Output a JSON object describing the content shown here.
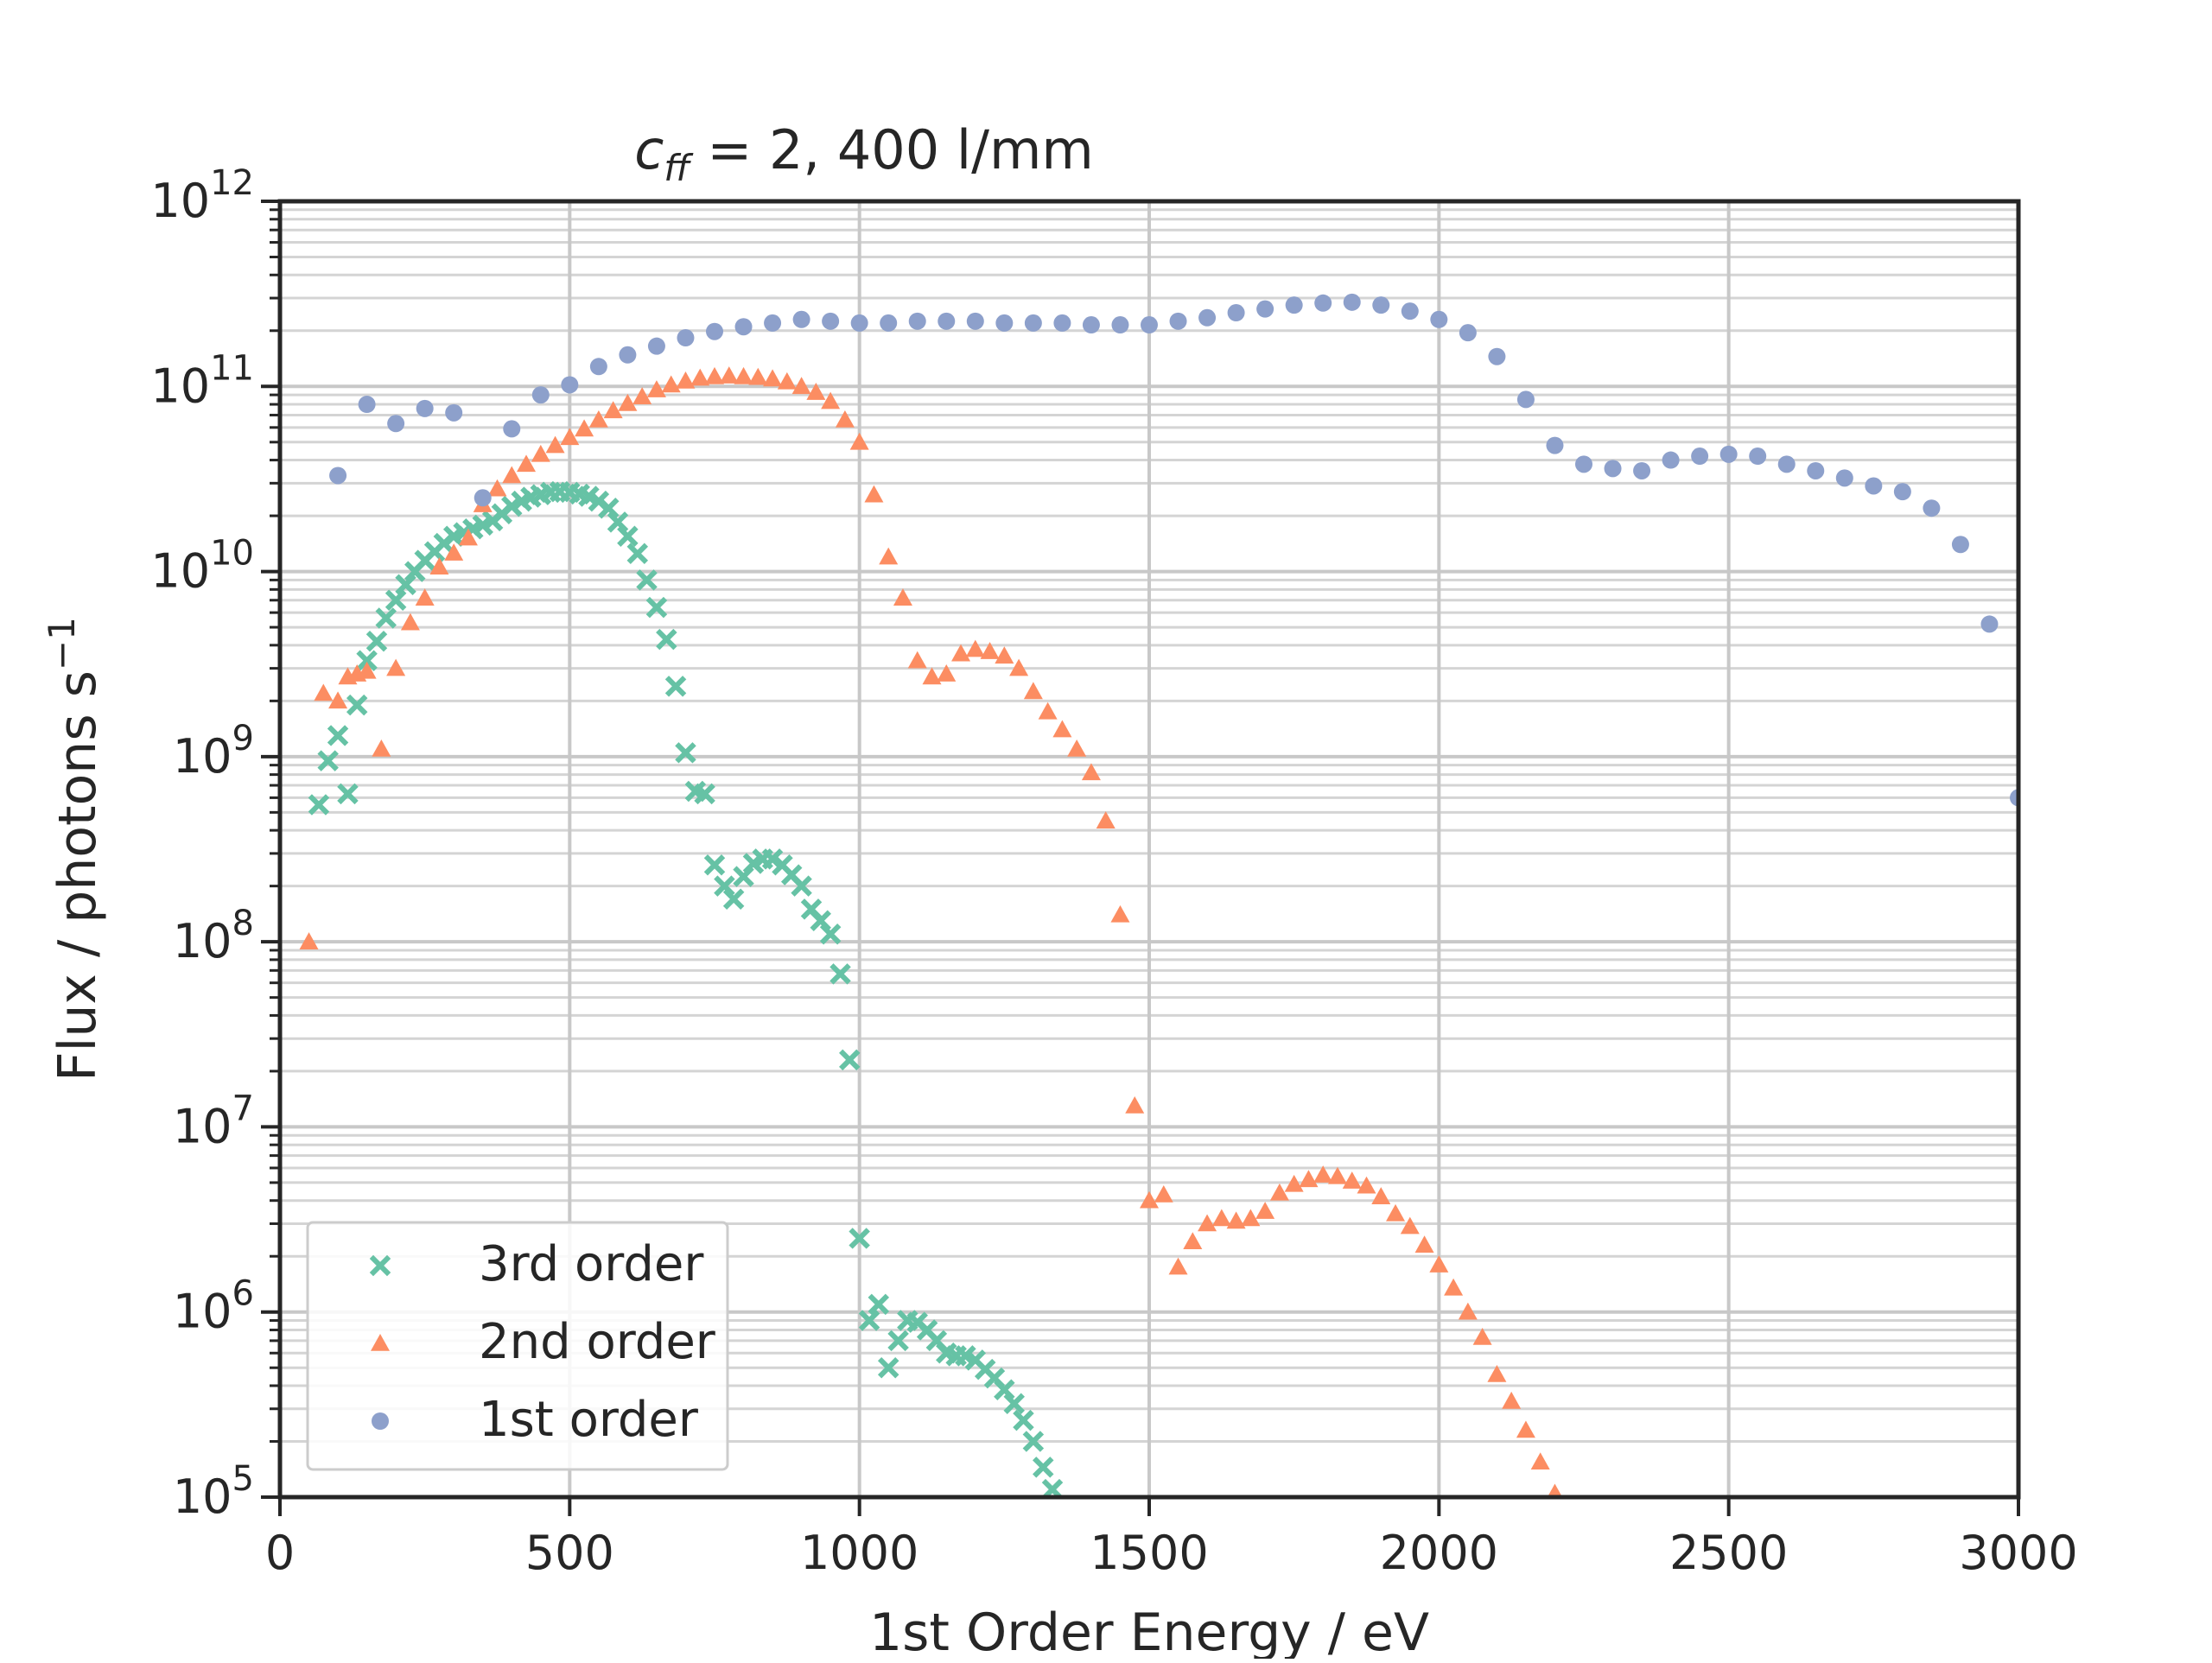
{
  "chart_data": {
    "type": "scatter",
    "title": {
      "prefix": "c",
      "subscript": "ff",
      "suffix": " = 2, 400 l/mm"
    },
    "xlabel": "1st Order Energy / eV",
    "ylabel": {
      "main": "Flux / photons s",
      "superscript": "−1"
    },
    "xlim": [
      0,
      3000
    ],
    "ylim": [
      100000,
      1000000000000
    ],
    "yscale": "log",
    "xticks": [
      0,
      500,
      1000,
      1500,
      2000,
      2500,
      3000
    ],
    "xtick_labels": [
      "0",
      "500",
      "1000",
      "1500",
      "2000",
      "2500",
      "3000"
    ],
    "yticks": [
      {
        "base": "10",
        "exp": "5"
      },
      {
        "base": "10",
        "exp": "6"
      },
      {
        "base": "10",
        "exp": "7"
      },
      {
        "base": "10",
        "exp": "8"
      },
      {
        "base": "10",
        "exp": "9"
      },
      {
        "base": "10",
        "exp": "10"
      },
      {
        "base": "10",
        "exp": "11"
      },
      {
        "base": "10",
        "exp": "12"
      }
    ],
    "grid": true,
    "legend_position": "lower-left",
    "series": [
      {
        "name": "3rd order",
        "marker": "x",
        "color": "#66c2a5",
        "points": [
          [
            67,
            550000000.0
          ],
          [
            83,
            950000000.0
          ],
          [
            100,
            1300000000.0
          ],
          [
            117,
            630000000.0
          ],
          [
            133,
            1900000000.0
          ],
          [
            150,
            3300000000.0
          ],
          [
            167,
            4200000000.0
          ],
          [
            183,
            5600000000.0
          ],
          [
            200,
            7000000000.0
          ],
          [
            217,
            8500000000.0
          ],
          [
            233,
            10000000000.0
          ],
          [
            250,
            11500000000.0
          ],
          [
            267,
            12800000000.0
          ],
          [
            283,
            14200000000.0
          ],
          [
            300,
            15500000000.0
          ],
          [
            317,
            16200000000.0
          ],
          [
            333,
            17000000000.0
          ],
          [
            350,
            17800000000.0
          ],
          [
            367,
            18800000000.0
          ],
          [
            383,
            20500000000.0
          ],
          [
            400,
            22500000000.0
          ],
          [
            417,
            24000000000.0
          ],
          [
            433,
            25200000000.0
          ],
          [
            450,
            26000000000.0
          ],
          [
            467,
            26800000000.0
          ],
          [
            483,
            27000000000.0
          ],
          [
            500,
            26800000000.0
          ],
          [
            517,
            26200000000.0
          ],
          [
            533,
            25500000000.0
          ],
          [
            550,
            24000000000.0
          ],
          [
            567,
            22000000000.0
          ],
          [
            583,
            18500000000.0
          ],
          [
            600,
            15500000000.0
          ],
          [
            617,
            12500000000.0
          ],
          [
            633,
            9000000000.0
          ],
          [
            650,
            6400000000.0
          ],
          [
            667,
            4300000000.0
          ],
          [
            683,
            2400000000.0
          ],
          [
            700,
            1050000000.0
          ],
          [
            717,
            650000000.0
          ],
          [
            733,
            630000000.0
          ],
          [
            750,
            260000000.0
          ],
          [
            767,
            200000000.0
          ],
          [
            783,
            170000000.0
          ],
          [
            800,
            225000000.0
          ],
          [
            817,
            265000000.0
          ],
          [
            833,
            280000000.0
          ],
          [
            850,
            280000000.0
          ],
          [
            867,
            260000000.0
          ],
          [
            883,
            230000000.0
          ],
          [
            900,
            200000000.0
          ],
          [
            917,
            150000000.0
          ],
          [
            933,
            130000000.0
          ],
          [
            950,
            110000000.0
          ],
          [
            967,
            67000000.0
          ],
          [
            983,
            23000000.0
          ],
          [
            1000,
            2500000.0
          ],
          [
            1017,
            900000.0
          ],
          [
            1033,
            1100000.0
          ],
          [
            1050,
            500000.0
          ],
          [
            1067,
            700000.0
          ],
          [
            1083,
            900000.0
          ],
          [
            1100,
            880000.0
          ],
          [
            1117,
            800000.0
          ],
          [
            1133,
            700000.0
          ],
          [
            1150,
            600000.0
          ],
          [
            1167,
            580000.0
          ],
          [
            1183,
            580000.0
          ],
          [
            1200,
            550000.0
          ],
          [
            1217,
            490000.0
          ],
          [
            1233,
            440000.0
          ],
          [
            1250,
            380000.0
          ],
          [
            1267,
            320000.0
          ],
          [
            1283,
            260000.0
          ],
          [
            1300,
            200000.0
          ],
          [
            1317,
            145000.0
          ],
          [
            1333,
            110000.0
          ]
        ]
      },
      {
        "name": "2nd order",
        "marker": "triangle",
        "color": "#fc8d62",
        "points": [
          [
            50,
            100000000.0
          ],
          [
            75,
            2200000000.0
          ],
          [
            100,
            2000000000.0
          ],
          [
            117,
            2700000000.0
          ],
          [
            133,
            2800000000.0
          ],
          [
            150,
            2900000000.0
          ],
          [
            175,
            1100000000.0
          ],
          [
            200,
            3000000000.0
          ],
          [
            225,
            5300000000.0
          ],
          [
            250,
            7200000000.0
          ],
          [
            275,
            10600000000.0
          ],
          [
            300,
            12600000000.0
          ],
          [
            325,
            15200000000.0
          ],
          [
            350,
            23000000000.0
          ],
          [
            375,
            28000000000.0
          ],
          [
            400,
            33000000000.0
          ],
          [
            425,
            38000000000.0
          ],
          [
            450,
            43000000000.0
          ],
          [
            475,
            48000000000.0
          ],
          [
            500,
            53000000000.0
          ],
          [
            525,
            59000000000.0
          ],
          [
            550,
            66000000000.0
          ],
          [
            575,
            74000000000.0
          ],
          [
            600,
            81000000000.0
          ],
          [
            625,
            88000000000.0
          ],
          [
            650,
            96000000000.0
          ],
          [
            675,
            102000000000.0
          ],
          [
            700,
            107000000000.0
          ],
          [
            725,
            111000000000.0
          ],
          [
            750,
            113000000000.0
          ],
          [
            775,
            114000000000.0
          ],
          [
            800,
            113000000000.0
          ],
          [
            825,
            112000000000.0
          ],
          [
            850,
            110000000000.0
          ],
          [
            875,
            106000000000.0
          ],
          [
            900,
            100000000000.0
          ],
          [
            925,
            93000000000.0
          ],
          [
            950,
            83000000000.0
          ],
          [
            975,
            66000000000.0
          ],
          [
            1000,
            50000000000.0
          ],
          [
            1025,
            26000000000.0
          ],
          [
            1050,
            12000000000.0
          ],
          [
            1075,
            7200000000.0
          ],
          [
            1100,
            3300000000.0
          ],
          [
            1125,
            2700000000.0
          ],
          [
            1150,
            2800000000.0
          ],
          [
            1175,
            3600000000.0
          ],
          [
            1200,
            3800000000.0
          ],
          [
            1225,
            3700000000.0
          ],
          [
            1250,
            3500000000.0
          ],
          [
            1275,
            3000000000.0
          ],
          [
            1300,
            2250000000.0
          ],
          [
            1325,
            1750000000.0
          ],
          [
            1350,
            1400000000.0
          ],
          [
            1375,
            1100000000.0
          ],
          [
            1400,
            820000000.0
          ],
          [
            1425,
            450000000.0
          ],
          [
            1450,
            140000000.0
          ],
          [
            1475,
            13000000.0
          ],
          [
            1500,
            4000000.0
          ],
          [
            1525,
            4300000.0
          ],
          [
            1550,
            1750000.0
          ],
          [
            1575,
            2400000.0
          ],
          [
            1600,
            3000000.0
          ],
          [
            1625,
            3200000.0
          ],
          [
            1650,
            3100000.0
          ],
          [
            1675,
            3200000.0
          ],
          [
            1700,
            3500000.0
          ],
          [
            1725,
            4400000.0
          ],
          [
            1750,
            4900000.0
          ],
          [
            1775,
            5200000.0
          ],
          [
            1800,
            5500000.0
          ],
          [
            1825,
            5400000.0
          ],
          [
            1850,
            5100000.0
          ],
          [
            1875,
            4800000.0
          ],
          [
            1900,
            4200000.0
          ],
          [
            1925,
            3400000.0
          ],
          [
            1950,
            2900000.0
          ],
          [
            1975,
            2300000.0
          ],
          [
            2000,
            1800000.0
          ],
          [
            2025,
            1350000.0
          ],
          [
            2050,
            1000000.0
          ],
          [
            2075,
            730000.0
          ],
          [
            2100,
            460000.0
          ],
          [
            2125,
            330000.0
          ],
          [
            2150,
            230000.0
          ],
          [
            2175,
            155000.0
          ],
          [
            2200,
            105000.0
          ]
        ]
      },
      {
        "name": "1st order",
        "marker": "circle",
        "color": "#8da0cb",
        "points": [
          [
            100,
            33000000000.0
          ],
          [
            150,
            80000000000.0
          ],
          [
            200,
            63000000000.0
          ],
          [
            250,
            76000000000.0
          ],
          [
            300,
            72000000000.0
          ],
          [
            350,
            25000000000.0
          ],
          [
            400,
            59000000000.0
          ],
          [
            450,
            90000000000.0
          ],
          [
            500,
            102000000000.0
          ],
          [
            550,
            128000000000.0
          ],
          [
            600,
            148000000000.0
          ],
          [
            650,
            165000000000.0
          ],
          [
            700,
            183000000000.0
          ],
          [
            750,
            198000000000.0
          ],
          [
            800,
            210000000000.0
          ],
          [
            850,
            220000000000.0
          ],
          [
            900,
            230000000000.0
          ],
          [
            950,
            225000000000.0
          ],
          [
            1000,
            220000000000.0
          ],
          [
            1050,
            220000000000.0
          ],
          [
            1100,
            225000000000.0
          ],
          [
            1150,
            225000000000.0
          ],
          [
            1200,
            225000000000.0
          ],
          [
            1250,
            220000000000.0
          ],
          [
            1300,
            220000000000.0
          ],
          [
            1350,
            220000000000.0
          ],
          [
            1400,
            215000000000.0
          ],
          [
            1450,
            215000000000.0
          ],
          [
            1500,
            215000000000.0
          ],
          [
            1550,
            225000000000.0
          ],
          [
            1600,
            235000000000.0
          ],
          [
            1650,
            250000000000.0
          ],
          [
            1700,
            262000000000.0
          ],
          [
            1750,
            275000000000.0
          ],
          [
            1800,
            282000000000.0
          ],
          [
            1850,
            285000000000.0
          ],
          [
            1900,
            275000000000.0
          ],
          [
            1950,
            255000000000.0
          ],
          [
            2000,
            230000000000.0
          ],
          [
            2050,
            195000000000.0
          ],
          [
            2100,
            145000000000.0
          ],
          [
            2150,
            85000000000.0
          ],
          [
            2200,
            48000000000.0
          ],
          [
            2250,
            38000000000.0
          ],
          [
            2300,
            36000000000.0
          ],
          [
            2350,
            35000000000.0
          ],
          [
            2400,
            40000000000.0
          ],
          [
            2450,
            42000000000.0
          ],
          [
            2500,
            43000000000.0
          ],
          [
            2550,
            42000000000.0
          ],
          [
            2600,
            38000000000.0
          ],
          [
            2650,
            35000000000.0
          ],
          [
            2700,
            32000000000.0
          ],
          [
            2750,
            29000000000.0
          ],
          [
            2800,
            27000000000.0
          ],
          [
            2850,
            22000000000.0
          ],
          [
            2900,
            14000000000.0
          ],
          [
            2950,
            5200000000.0
          ],
          [
            3000,
            600000000.0
          ]
        ]
      }
    ]
  }
}
